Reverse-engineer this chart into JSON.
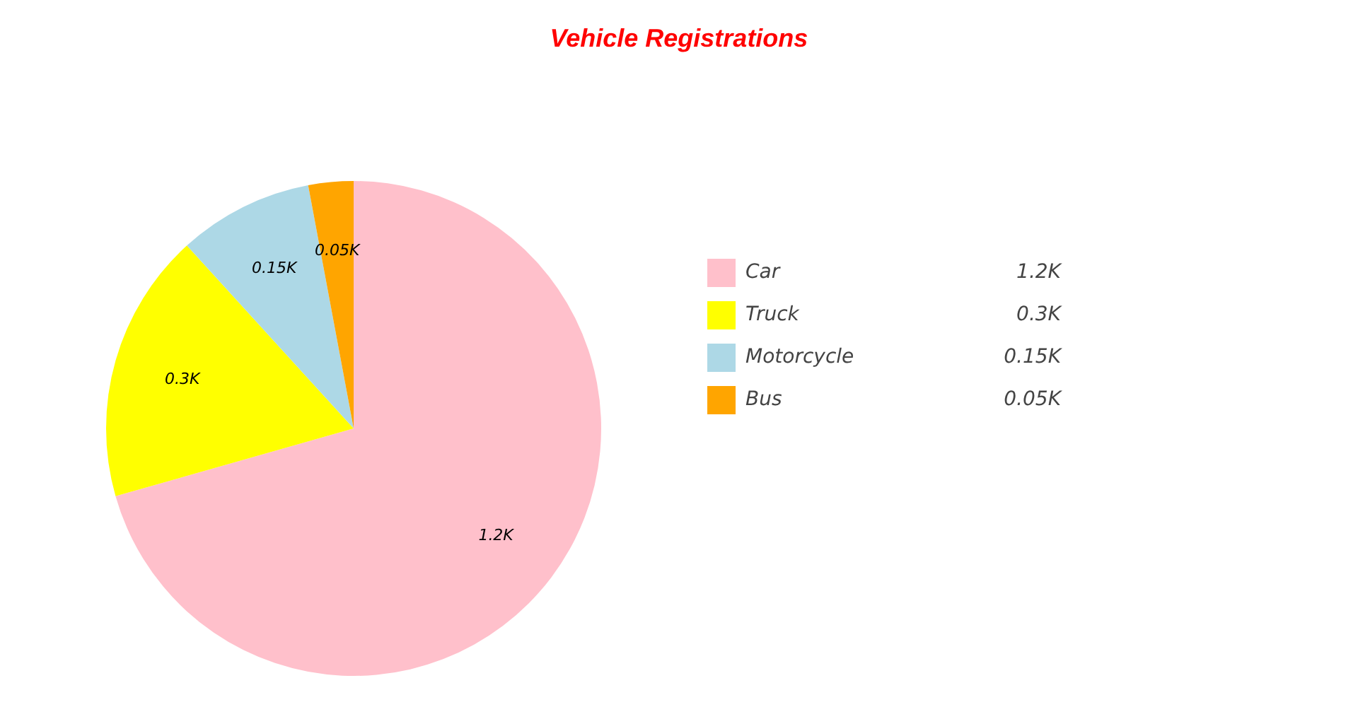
{
  "chart_data": {
    "type": "pie",
    "title": "Vehicle Registrations",
    "categories": [
      "Car",
      "Truck",
      "Motorcycle",
      "Bus"
    ],
    "values": [
      1200,
      300,
      150,
      50
    ],
    "colors": [
      "#ffc0cb",
      "#ffff00",
      "#add8e6",
      "#ffa500"
    ],
    "value_labels": [
      "1.2K",
      "0.3K",
      "0.15K",
      "0.05K"
    ],
    "legend": "right"
  }
}
